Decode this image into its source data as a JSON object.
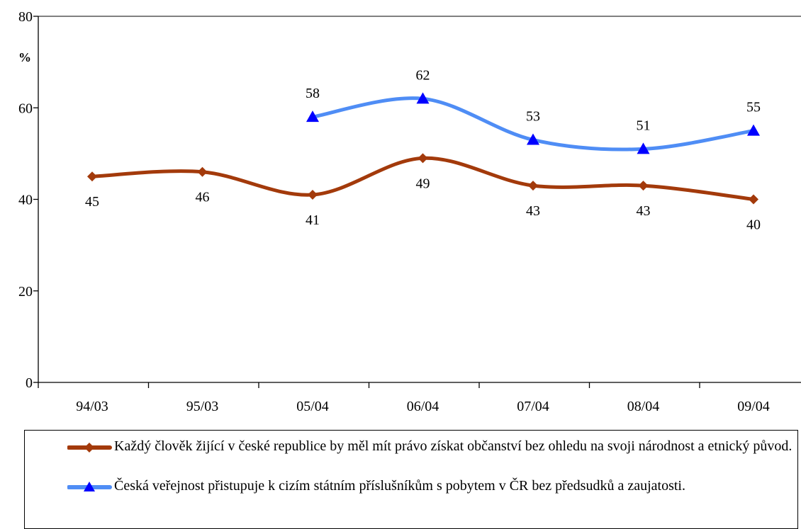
{
  "chart_data": {
    "type": "line",
    "categories": [
      "94/03",
      "95/03",
      "05/04",
      "06/04",
      "07/04",
      "08/04",
      "09/04"
    ],
    "ylabel": "%",
    "ylim": [
      0,
      80
    ],
    "yticks": [
      0,
      20,
      40,
      60,
      80
    ],
    "grid": false,
    "legend_position": "bottom",
    "series": [
      {
        "name": "Každý člověk žijící v české republice by měl mít právo získat občanství bez ohledu na svoji národnost a etnický původ.",
        "values": [
          45,
          46,
          41,
          49,
          43,
          43,
          40
        ],
        "labels": [
          "45",
          "46",
          "41",
          "49",
          "43",
          "43",
          "40"
        ],
        "color": "#A33A0B",
        "marker": "diamond",
        "label_position": "below"
      },
      {
        "name": "Česká veřejnost přistupuje k cizím státním příslušníkům s pobytem v ČR bez předsudků a zaujatosti.",
        "values": [
          null,
          null,
          58,
          62,
          53,
          51,
          55
        ],
        "labels": [
          "",
          "",
          "58",
          "62",
          "53",
          "51",
          "55"
        ],
        "color": "#4F8DF5",
        "marker": "triangle",
        "label_position": "above"
      }
    ]
  }
}
